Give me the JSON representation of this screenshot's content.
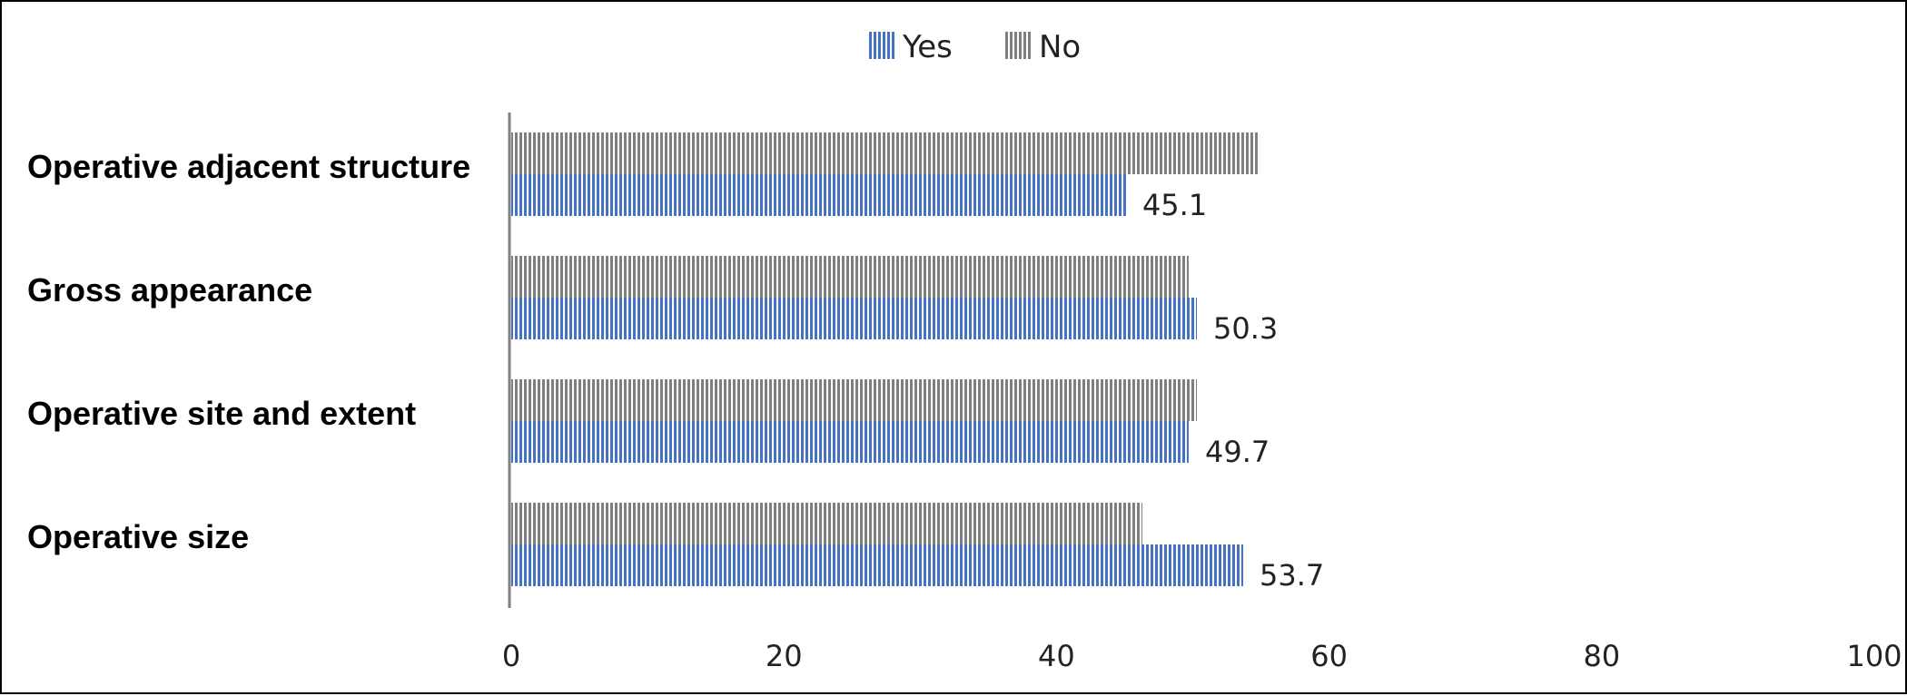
{
  "chart_data": {
    "type": "bar",
    "orientation": "horizontal",
    "categories": [
      "Operative adjacent structure",
      "Gross appearance",
      "Operative site and extent",
      "Operative size"
    ],
    "series": [
      {
        "name": "Yes",
        "values": [
          45.1,
          50.3,
          49.7,
          53.7
        ],
        "color": "#4472C4",
        "data_labels": [
          "45.1",
          "50.3",
          "49.7",
          "53.7"
        ]
      },
      {
        "name": "No",
        "values": [
          54.9,
          49.7,
          50.3,
          46.3
        ],
        "color": "#8C8C8C"
      }
    ],
    "xlim": [
      0,
      100
    ],
    "x_ticks": [
      "0",
      "20",
      "40",
      "60",
      "80",
      "100"
    ],
    "legend_position": "top",
    "grid": false
  }
}
